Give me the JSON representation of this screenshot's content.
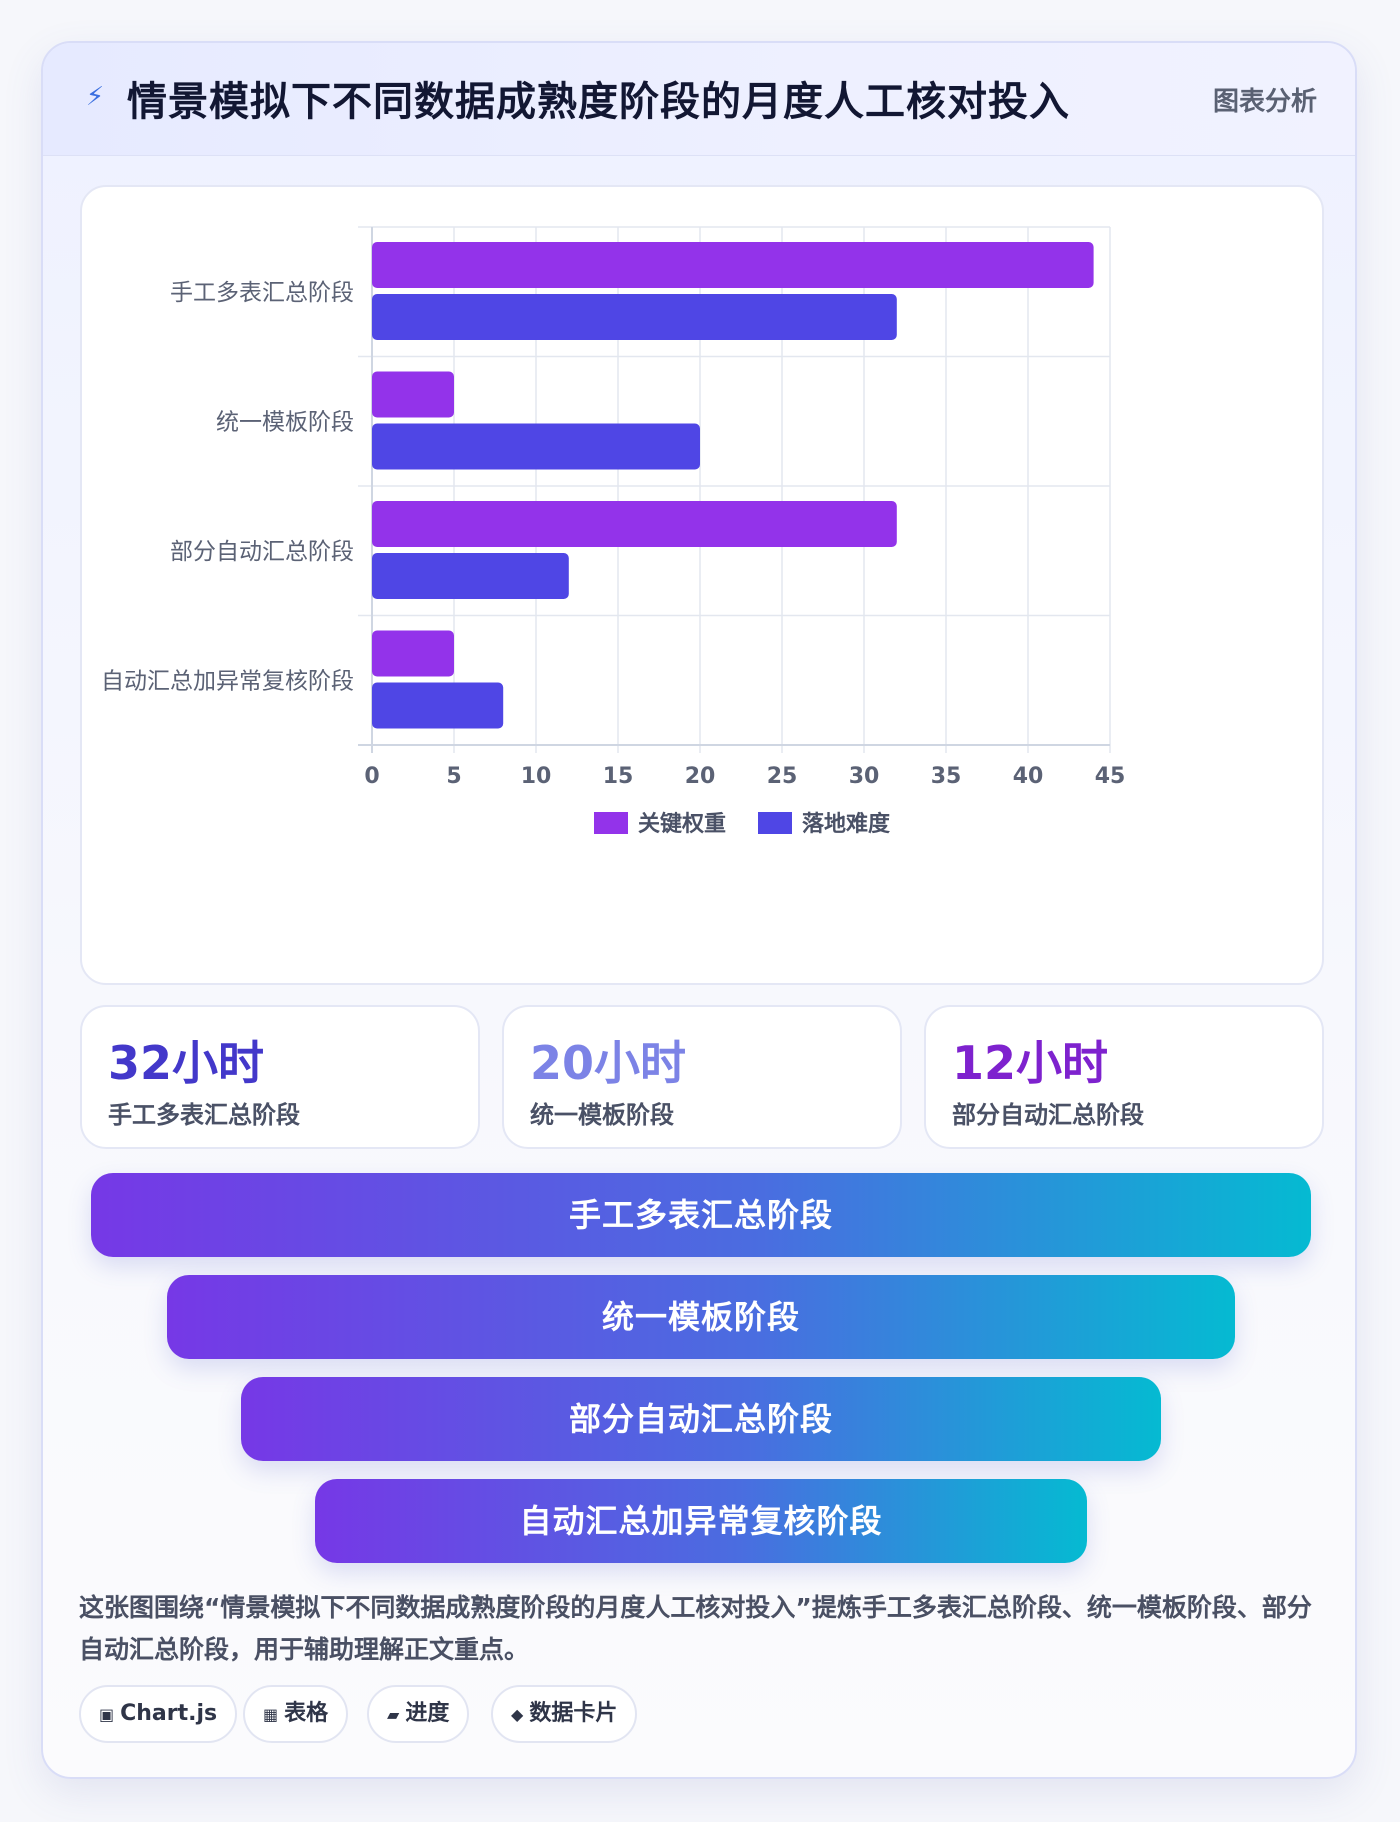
{
  "header": {
    "icon": "lightning-icon",
    "title": "情景模拟下不同数据成熟度阶段的月度人工核对投入",
    "badge": "图表分析"
  },
  "chart_data": {
    "type": "bar",
    "orientation": "horizontal",
    "categories": [
      "手工多表汇总阶段",
      "统一模板阶段",
      "部分自动汇总阶段",
      "自动汇总加异常复核阶段"
    ],
    "series": [
      {
        "name": "关键权重",
        "values": [
          44,
          5,
          32,
          5
        ],
        "color": "#9333ea"
      },
      {
        "name": "落地难度",
        "values": [
          32,
          20,
          12,
          8
        ],
        "color": "#4f46e5"
      }
    ],
    "xlim": [
      0,
      45
    ],
    "xticks": [
      0,
      5,
      10,
      15,
      20,
      25,
      30,
      35,
      40,
      45
    ],
    "grid": true,
    "legend_position": "bottom"
  },
  "stats": [
    {
      "value": "32小时",
      "label": "手工多表汇总阶段",
      "color": "#4338ca"
    },
    {
      "value": "20小时",
      "label": "统一模板阶段",
      "color": "#7c83e6"
    },
    {
      "value": "12小时",
      "label": "部分自动汇总阶段",
      "color": "#7e22ce"
    }
  ],
  "funnel": [
    "手工多表汇总阶段",
    "统一模板阶段",
    "部分自动汇总阶段",
    "自动汇总加异常复核阶段"
  ],
  "summary": "这张图围绕“情景模拟下不同数据成熟度阶段的月度人工核对投入”提炼手工多表汇总阶段、统一模板阶段、部分自动汇总阶段，用于辅助理解正文重点。",
  "tags": [
    {
      "icon": "chip-icon",
      "glyph": "▣",
      "label": "Chart.js"
    },
    {
      "icon": "table-icon",
      "glyph": "▦",
      "label": "表格"
    },
    {
      "icon": "progress-icon",
      "glyph": "▰",
      "label": "进度"
    },
    {
      "icon": "diamond-icon",
      "glyph": "◆",
      "label": "数据卡片"
    }
  ]
}
